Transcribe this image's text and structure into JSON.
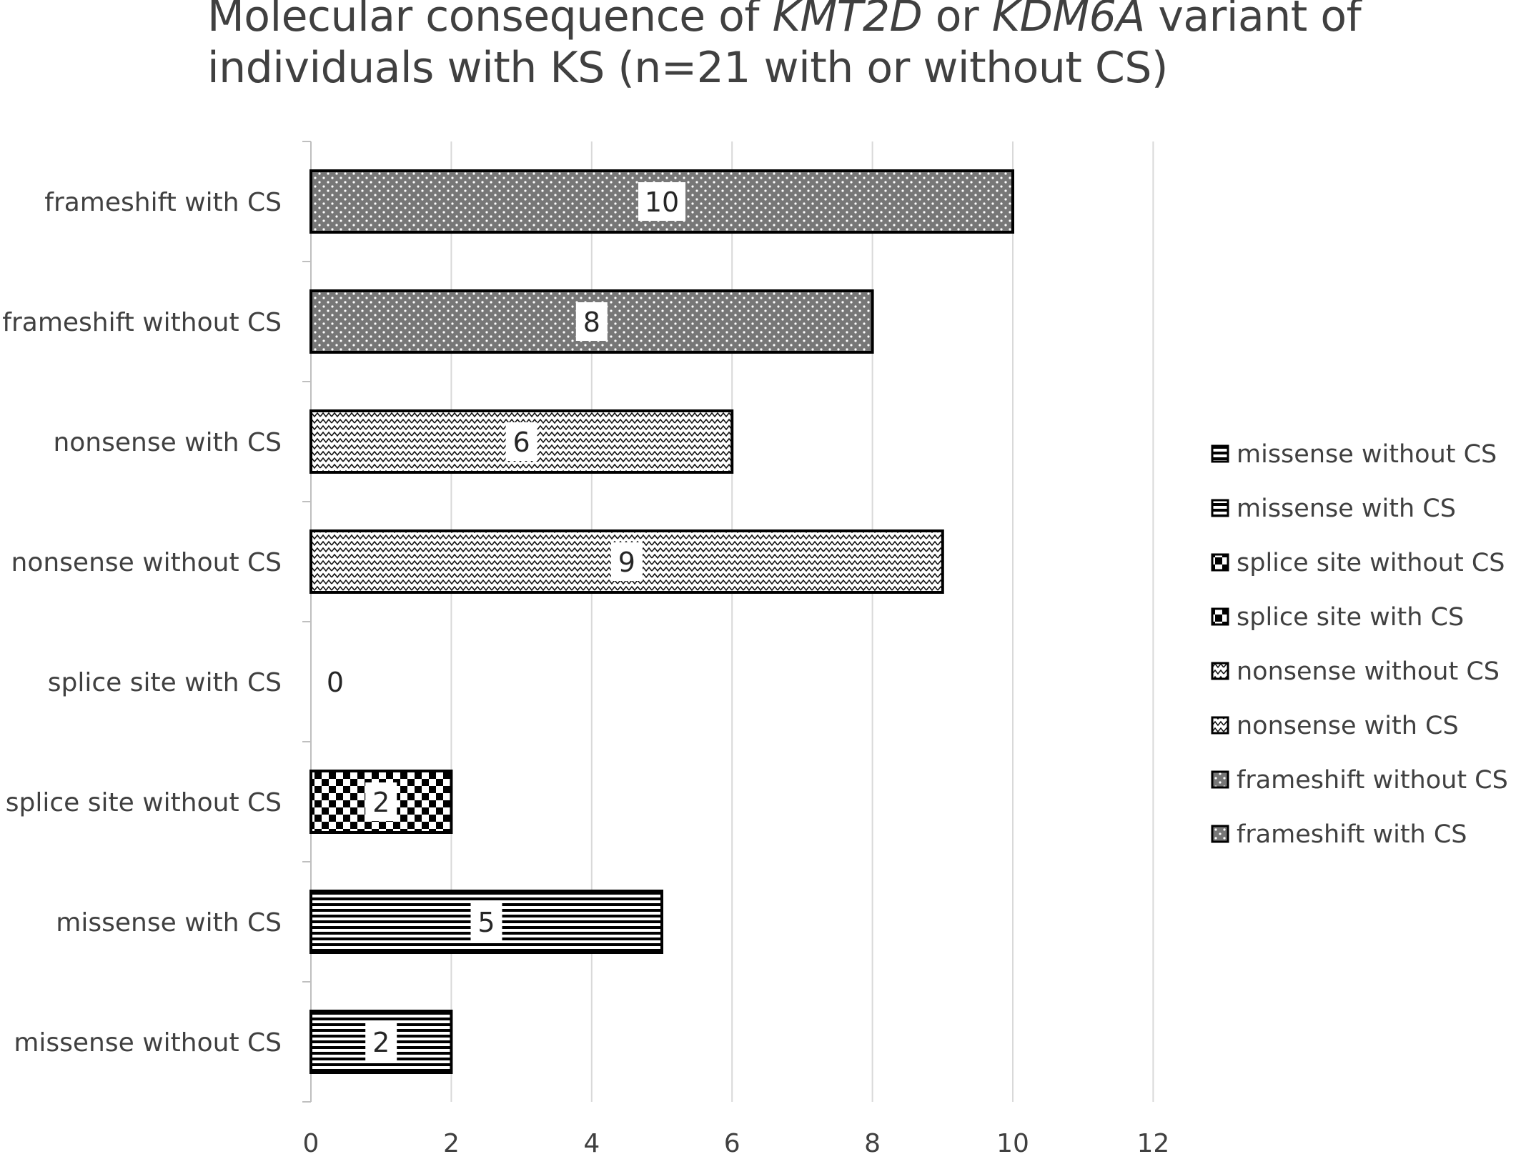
{
  "chart_data": {
    "type": "bar",
    "orientation": "horizontal",
    "title": {
      "line1": [
        {
          "text": "Molecular consequence of ",
          "italic": false
        },
        {
          "text": "KMT2D",
          "italic": true
        },
        {
          "text": " or ",
          "italic": false
        },
        {
          "text": "KDM6A",
          "italic": true
        },
        {
          "text": " variant of",
          "italic": false
        }
      ],
      "line2": [
        {
          "text": "individuals with KS (n=21 with or without CS)",
          "italic": false
        }
      ]
    },
    "xlabel": "",
    "ylabel": "",
    "xlim": [
      0,
      12
    ],
    "x_ticks": [
      0,
      2,
      4,
      6,
      8,
      10,
      12
    ],
    "grid": "vertical",
    "categories": [
      "missense without CS",
      "missense with CS",
      "splice site without CS",
      "splice site with CS",
      "nonsense without CS",
      "nonsense with CS",
      "frameshift without CS",
      "frameshift with CS"
    ],
    "values": [
      2,
      5,
      2,
      0,
      9,
      6,
      8,
      10
    ],
    "data_labels": [
      "2",
      "5",
      "2",
      "0",
      "9",
      "6",
      "8",
      "10"
    ],
    "patterns": [
      "hstripes",
      "hstripes",
      "checker",
      "checker",
      "zigzag",
      "zigzag",
      "dots",
      "dots"
    ],
    "legend": {
      "position": "right",
      "entries": [
        "missense without CS",
        "missense with CS",
        "splice site without CS",
        "splice site with CS",
        "nonsense without CS",
        "nonsense with CS",
        "frameshift without CS",
        "frameshift with CS"
      ]
    },
    "colors": {
      "bar_outline": "#000000",
      "frameshift_fill": "#7f7f7f",
      "text": "#404040",
      "grid": "#d9d9d9"
    }
  }
}
